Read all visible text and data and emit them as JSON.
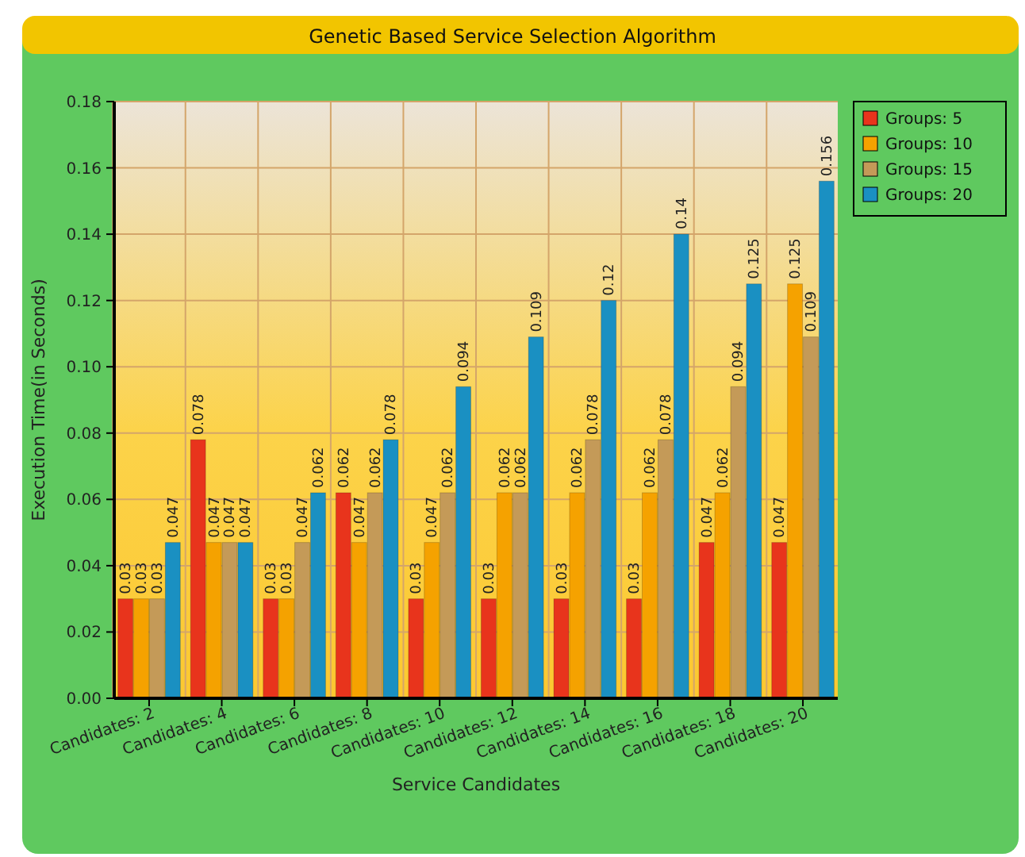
{
  "chart_data": {
    "type": "bar",
    "title": "Genetic Based Service Selection Algorithm",
    "xlabel": "Service Candidates",
    "ylabel": "Execution Time(in Seconds)",
    "categories": [
      "Candidates: 2",
      "Candidates: 4",
      "Candidates: 6",
      "Candidates: 8",
      "Candidates: 10",
      "Candidates: 12",
      "Candidates: 14",
      "Candidates: 16",
      "Candidates: 18",
      "Candidates: 20"
    ],
    "series": [
      {
        "name": "Groups: 5",
        "color": "#e8341c",
        "values": [
          0.03,
          0.078,
          0.03,
          0.062,
          0.03,
          0.03,
          0.03,
          0.03,
          0.047,
          0.047
        ]
      },
      {
        "name": "Groups: 10",
        "color": "#f5a200",
        "values": [
          0.03,
          0.047,
          0.03,
          0.047,
          0.047,
          0.062,
          0.062,
          0.062,
          0.062,
          0.125
        ]
      },
      {
        "name": "Groups: 15",
        "color": "#c49a58",
        "values": [
          0.03,
          0.047,
          0.047,
          0.062,
          0.062,
          0.062,
          0.078,
          0.078,
          0.094,
          0.109
        ]
      },
      {
        "name": "Groups: 20",
        "color": "#1a90c2",
        "values": [
          0.047,
          0.047,
          0.062,
          0.078,
          0.094,
          0.109,
          0.12,
          0.14,
          0.125,
          0.156
        ]
      }
    ],
    "ylim": [
      0,
      0.18
    ],
    "yticks": [
      {
        "value": 0,
        "label": "0.00"
      },
      {
        "value": 0.02,
        "label": "0.02"
      },
      {
        "value": 0.04,
        "label": "0.04"
      },
      {
        "value": 0.06,
        "label": "0.06"
      },
      {
        "value": 0.08,
        "label": "0.08"
      },
      {
        "value": 0.1,
        "label": "0.10"
      },
      {
        "value": 0.12,
        "label": "0.12"
      },
      {
        "value": 0.14,
        "label": "0.14"
      },
      {
        "value": 0.16,
        "label": "0.16"
      },
      {
        "value": 0.18,
        "label": "0.18"
      }
    ],
    "grid": true,
    "legend": "top right",
    "data_labels": true
  }
}
